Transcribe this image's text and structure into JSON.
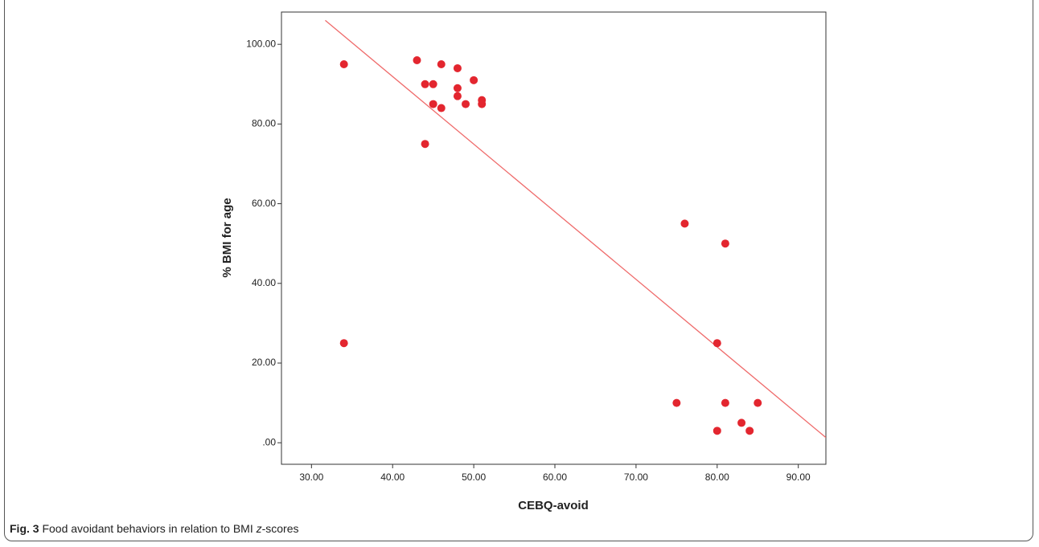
{
  "chart_data": {
    "type": "scatter",
    "x_label": "CEBQ-avoid",
    "y_label": "% BMI for age",
    "x": [
      34,
      34,
      43,
      44,
      44,
      45,
      45,
      46,
      46,
      48,
      48,
      48,
      49,
      50,
      51,
      51,
      75,
      76,
      80,
      80,
      81,
      81,
      83,
      84,
      85
    ],
    "values": [
      95,
      25,
      96,
      90,
      75,
      90,
      85,
      95,
      84,
      94,
      89,
      87,
      85,
      91,
      86,
      85,
      10,
      55,
      25,
      3,
      50,
      10,
      5,
      3,
      10
    ],
    "color": "#e3262f",
    "trend_line": {
      "color": "#ef6b6b",
      "x": [
        31.7,
        93.4
      ],
      "y": [
        106,
        1.3
      ]
    },
    "xlim": [
      26.3,
      93.4
    ],
    "ylim": [
      -5.4,
      108.1
    ],
    "xticks": [
      {
        "value": 30,
        "label": "30.00"
      },
      {
        "value": 40,
        "label": "40.00"
      },
      {
        "value": 50,
        "label": "50.00"
      },
      {
        "value": 60,
        "label": "60.00"
      },
      {
        "value": 70,
        "label": "70.00"
      },
      {
        "value": 80,
        "label": "80.00"
      },
      {
        "value": 90,
        "label": "90.00"
      }
    ],
    "yticks": [
      {
        "value": 0,
        "label": ".00"
      },
      {
        "value": 20,
        "label": "20.00"
      },
      {
        "value": 40,
        "label": "40.00"
      },
      {
        "value": 60,
        "label": "60.00"
      },
      {
        "value": 80,
        "label": "80.00"
      },
      {
        "value": 100,
        "label": "100.00"
      }
    ]
  },
  "caption": {
    "label": "Fig. 3",
    "text": "Food avoidant behaviors in relation to BMI ",
    "italic": "z",
    "suffix": "-scores"
  }
}
